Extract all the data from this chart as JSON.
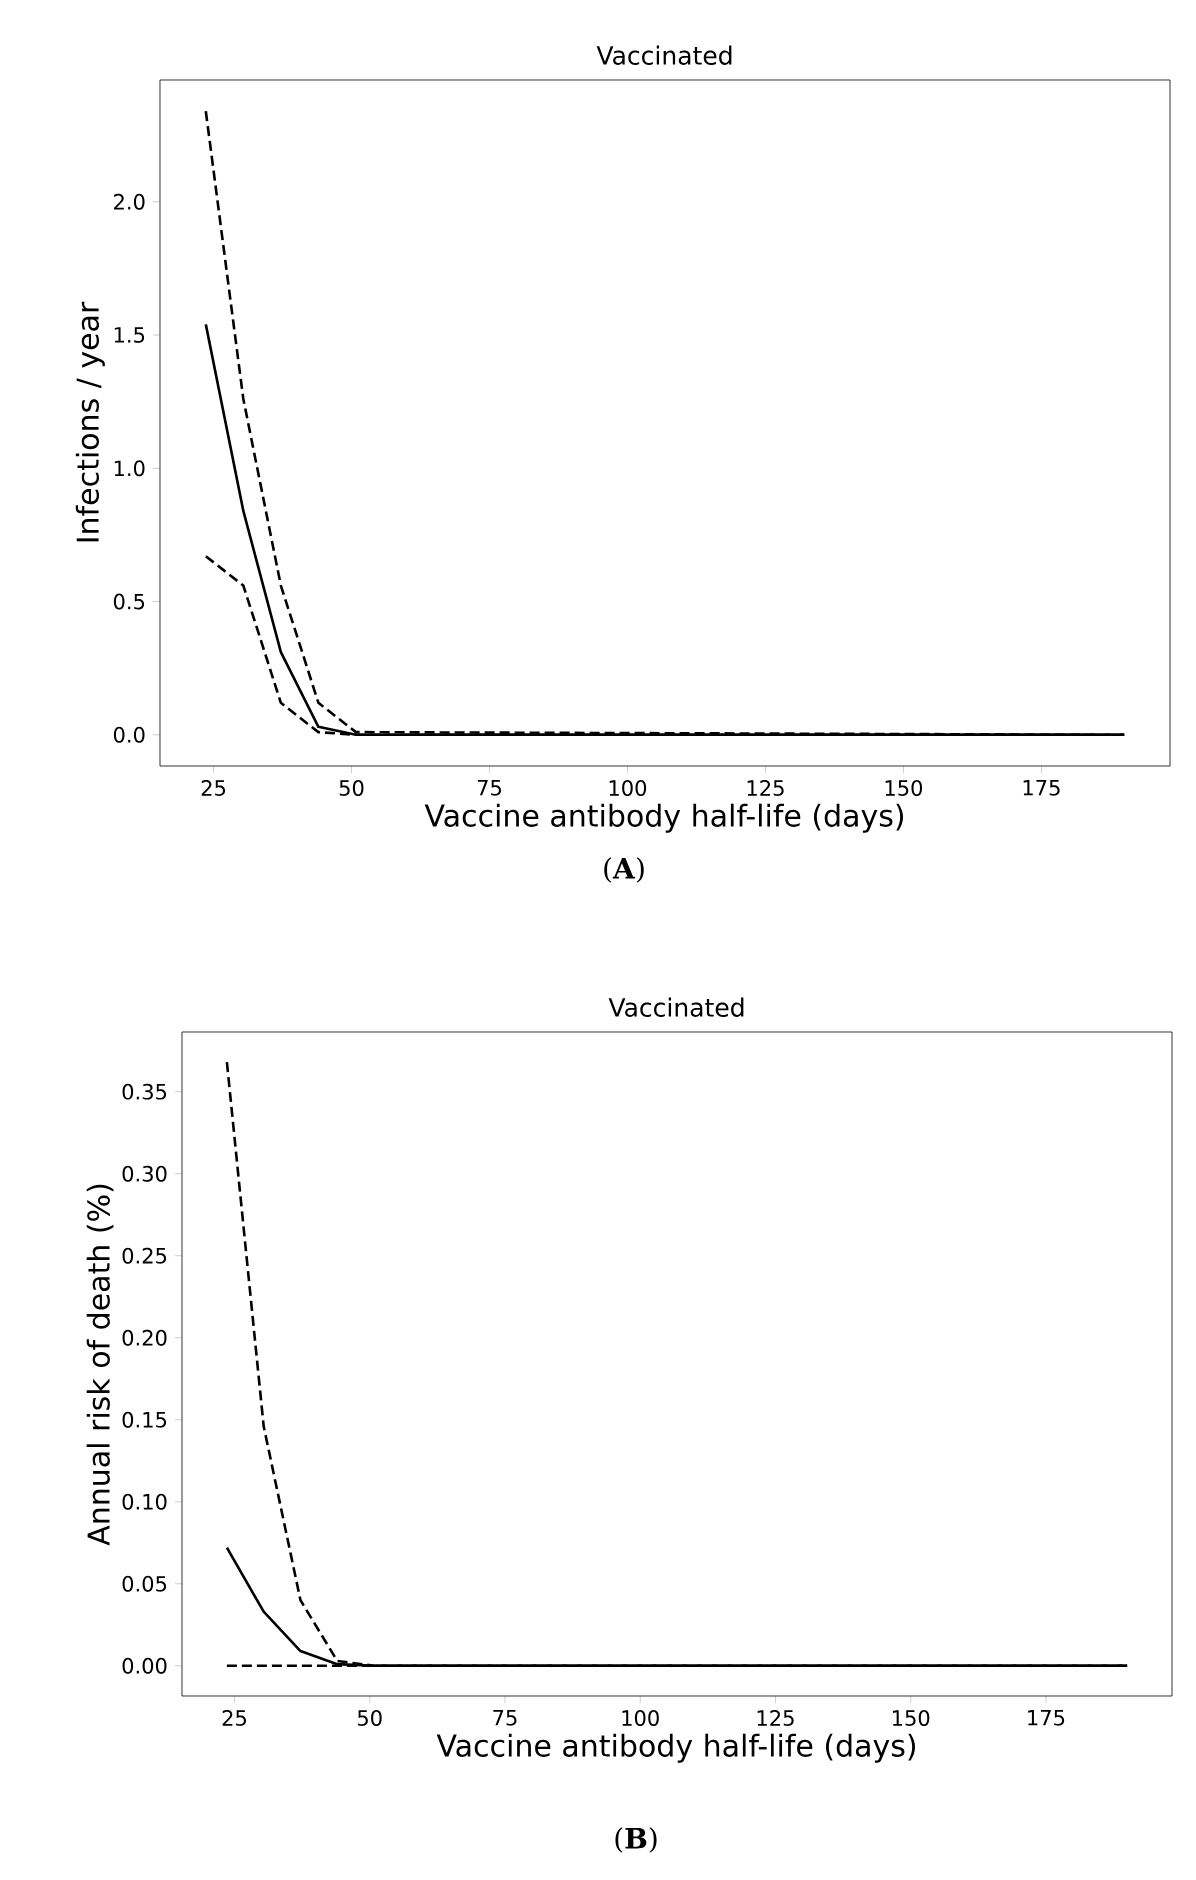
{
  "chart_data": [
    {
      "type": "line",
      "title": "Vaccinated",
      "xlabel": "Vaccine antibody half-life (days)",
      "ylabel": "Infections / year",
      "annotations": [
        "(**A**)"
      ],
      "xlim": [
        15.3,
        198.3
      ],
      "ylim": [
        -0.117,
        2.457
      ],
      "xticks": [
        25,
        50,
        75,
        100,
        125,
        150,
        175
      ],
      "yticks": [
        {
          "value": 0,
          "label": "0.0"
        },
        {
          "value": 0.5,
          "label": "0.5"
        },
        {
          "value": 1,
          "label": "1.0"
        },
        {
          "value": 1.5,
          "label": "1.5"
        },
        {
          "value": 2,
          "label": "2.0"
        }
      ],
      "grid": false,
      "marker": "none",
      "x": [
        23.6,
        30.4,
        37.2,
        44,
        50.8,
        190
      ],
      "series": [
        {
          "color": "#000000",
          "line_style": "solid",
          "values": [
            1.54,
            0.84,
            0.31,
            0.03,
            0,
            0
          ]
        },
        {
          "color": "#000000",
          "line_style": "dashed",
          "values": [
            2.34,
            1.26,
            0.56,
            0.12,
            0.01,
            0
          ]
        },
        {
          "color": "#000000",
          "line_style": "dashed",
          "values": [
            0.67,
            0.56,
            0.12,
            0.01,
            0,
            0
          ]
        }
      ]
    },
    {
      "type": "line",
      "title": "Vaccinated",
      "xlabel": "Vaccine antibody half-life (days)",
      "ylabel": "Annual risk of death (%)",
      "annotations": [
        "(**B**)"
      ],
      "xlim": [
        15.3,
        198.3
      ],
      "ylim": [
        -0.0184,
        0.3864
      ],
      "xticks": [
        25,
        50,
        75,
        100,
        125,
        150,
        175
      ],
      "yticks": [
        {
          "value": 0,
          "label": "0.00"
        },
        {
          "value": 0.05,
          "label": "0.05"
        },
        {
          "value": 0.1,
          "label": "0.10"
        },
        {
          "value": 0.15,
          "label": "0.15"
        },
        {
          "value": 0.2,
          "label": "0.20"
        },
        {
          "value": 0.25,
          "label": "0.25"
        },
        {
          "value": 0.3,
          "label": "0.30"
        },
        {
          "value": 0.35,
          "label": "0.35"
        }
      ],
      "grid": false,
      "marker": "none",
      "x": [
        23.6,
        30.4,
        37.2,
        44,
        50.8,
        190
      ],
      "series": [
        {
          "color": "#000000",
          "line_style": "solid",
          "values": [
            0.072,
            0.033,
            0.009,
            0.001,
            0,
            0
          ]
        },
        {
          "color": "#000000",
          "line_style": "dashed",
          "values": [
            0.368,
            0.146,
            0.04,
            0.003,
            0,
            0
          ]
        },
        {
          "color": "#000000",
          "line_style": "dashed",
          "values": [
            0,
            0,
            0,
            0,
            0,
            0
          ]
        }
      ]
    }
  ]
}
